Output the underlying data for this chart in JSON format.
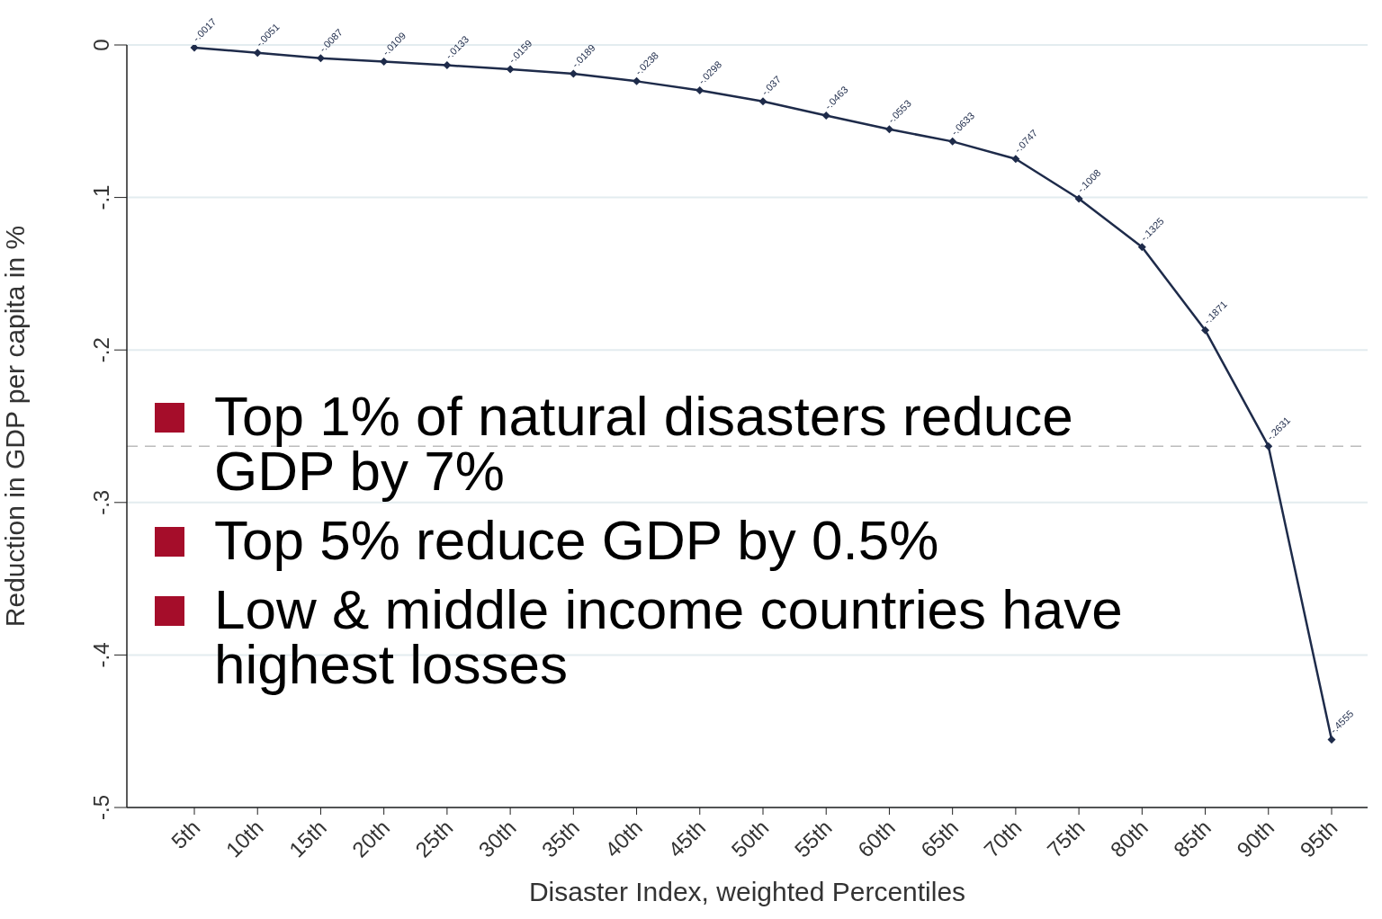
{
  "chart_data": {
    "type": "line",
    "xlabel": "Disaster Index, weighted Percentiles",
    "ylabel": "Reduction in GDP per capita in %",
    "categories": [
      "5th",
      "10th",
      "15th",
      "20th",
      "25th",
      "30th",
      "35th",
      "40th",
      "45th",
      "50th",
      "55th",
      "60th",
      "65th",
      "70th",
      "75th",
      "80th",
      "85th",
      "90th",
      "95th"
    ],
    "series": [
      {
        "color": "#1e2b4a",
        "values": [
          -0.0017,
          -0.0051,
          -0.0087,
          -0.0109,
          -0.0133,
          -0.0159,
          -0.0189,
          -0.0238,
          -0.0298,
          -0.037,
          -0.0463,
          -0.0553,
          -0.0633,
          -0.0747,
          -0.1008,
          -0.1325,
          -0.1871,
          -0.2631,
          -0.4555
        ],
        "value_labels": [
          "-.0017",
          "-.0051",
          "-.0087",
          "-.0109",
          "-.0133",
          "-.0159",
          "-.0189",
          "-.0238",
          "-.0298",
          "-.037",
          "-.0463",
          "-.0553",
          "-.0633",
          "-.0747",
          "-.1008",
          "-.1325",
          "-.1871",
          "-.2631",
          "-.4555"
        ]
      }
    ],
    "ylim": [
      -0.5,
      0
    ],
    "yticks": [
      {
        "value": 0,
        "label": "0"
      },
      {
        "value": -0.1,
        "label": "-.1"
      },
      {
        "value": -0.2,
        "label": "-.2"
      },
      {
        "value": -0.3,
        "label": "-.3"
      },
      {
        "value": -0.4,
        "label": "-.4"
      },
      {
        "value": -0.5,
        "label": "-.5"
      }
    ],
    "grid": "y",
    "marker": "diamond",
    "line_style": "solid",
    "ref_lines": [
      {
        "axis": "y",
        "value": -0.2631,
        "color": "#bbbbbb",
        "line_style": "dashed"
      }
    ],
    "annotations": [
      "Top 1% of natural disasters reduce GDP by 7%",
      "Top 5% reduce GDP by 0.5%",
      "Low & middle income countries have highest losses"
    ]
  }
}
